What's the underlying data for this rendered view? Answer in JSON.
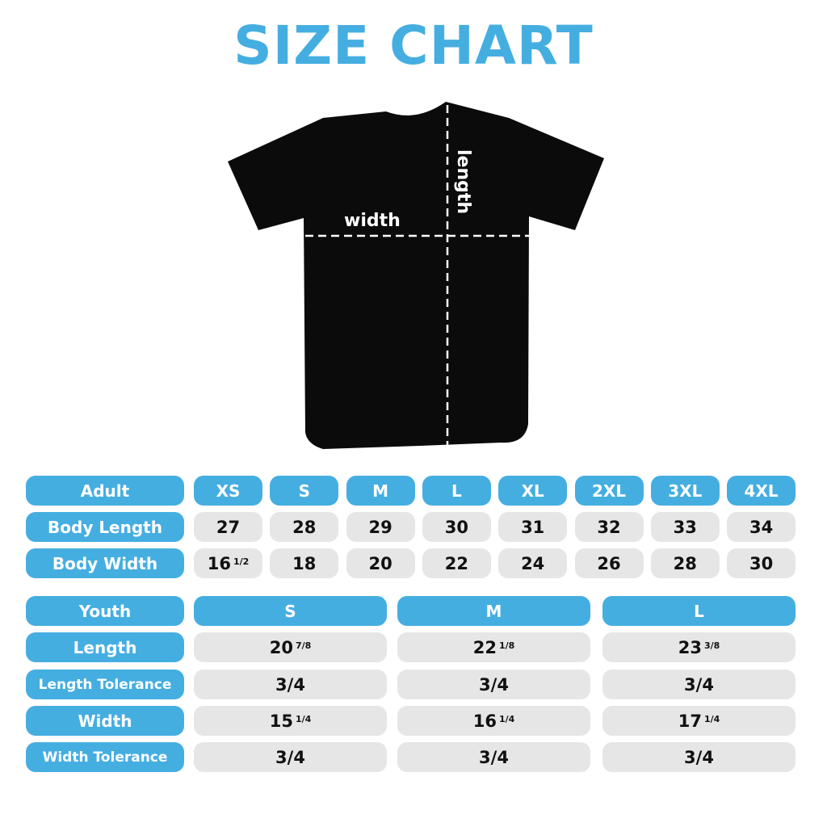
{
  "title": "SIZE CHART",
  "colors": {
    "accent": "#45aee1",
    "cell_bg": "#e6e6e7",
    "shirt": "#0b0b0b"
  },
  "shirt": {
    "width_label": "width",
    "length_label": "length"
  },
  "adult": {
    "header": "Adult",
    "sizes": [
      "XS",
      "S",
      "M",
      "L",
      "XL",
      "2XL",
      "3XL",
      "4XL"
    ],
    "rows": [
      {
        "label": "Body Length",
        "values": [
          {
            "whole": "27"
          },
          {
            "whole": "28"
          },
          {
            "whole": "29"
          },
          {
            "whole": "30"
          },
          {
            "whole": "31"
          },
          {
            "whole": "32"
          },
          {
            "whole": "33"
          },
          {
            "whole": "34"
          }
        ]
      },
      {
        "label": "Body Width",
        "values": [
          {
            "whole": "16",
            "frac": "1/2"
          },
          {
            "whole": "18"
          },
          {
            "whole": "20"
          },
          {
            "whole": "22"
          },
          {
            "whole": "24"
          },
          {
            "whole": "26"
          },
          {
            "whole": "28"
          },
          {
            "whole": "30"
          }
        ]
      }
    ]
  },
  "youth": {
    "header": "Youth",
    "sizes": [
      "S",
      "M",
      "L"
    ],
    "rows": [
      {
        "label": "Length",
        "values": [
          {
            "whole": "20",
            "frac": "7/8"
          },
          {
            "whole": "22",
            "frac": "1/8"
          },
          {
            "whole": "23",
            "frac": "3/8"
          }
        ]
      },
      {
        "label": "Length Tolerance",
        "values": [
          {
            "whole": "3/4"
          },
          {
            "whole": "3/4"
          },
          {
            "whole": "3/4"
          }
        ]
      },
      {
        "label": "Width",
        "values": [
          {
            "whole": "15",
            "frac": "1/4"
          },
          {
            "whole": "16",
            "frac": "1/4"
          },
          {
            "whole": "17",
            "frac": "1/4"
          }
        ]
      },
      {
        "label": "Width Tolerance",
        "values": [
          {
            "whole": "3/4"
          },
          {
            "whole": "3/4"
          },
          {
            "whole": "3/4"
          }
        ]
      }
    ]
  }
}
